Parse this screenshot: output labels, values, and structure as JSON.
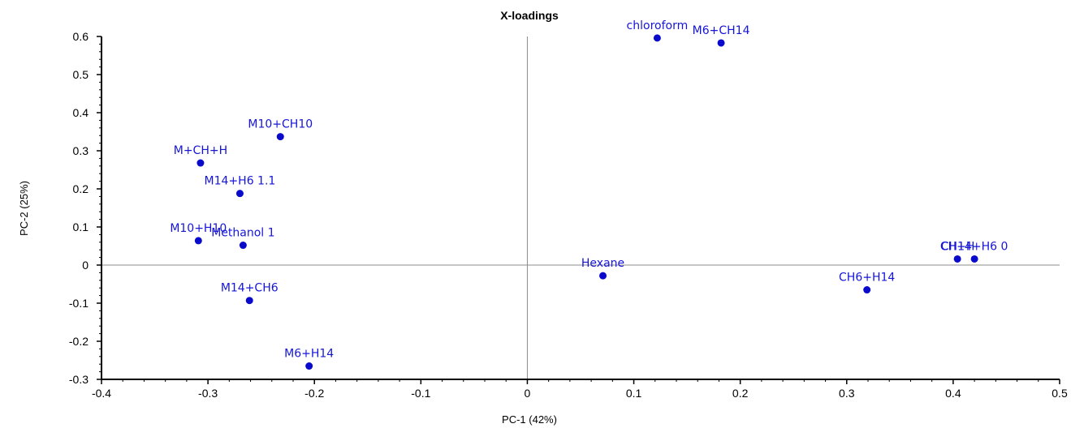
{
  "chart_data": {
    "type": "scatter",
    "title": "X-loadings",
    "xlabel": "PC-1 (42%)",
    "ylabel": "PC-2 (25%)",
    "xlim": [
      -0.4,
      0.5
    ],
    "ylim": [
      -0.3,
      0.6
    ],
    "xticks": [
      "-0.4",
      "-0.3",
      "-0.2",
      "-0.1",
      "0",
      "0.1",
      "0.2",
      "0.3",
      "0.4",
      "0.5"
    ],
    "yticks": [
      "-0.3",
      "-0.2",
      "-0.1",
      "0",
      "0.1",
      "0.2",
      "0.3",
      "0.4",
      "0.5",
      "0.6"
    ],
    "grid": false,
    "zero_lines": true,
    "marker_color": "#0a0acd",
    "label_color": "#1515d8",
    "points": [
      {
        "label": "chloroform",
        "x": 0.122,
        "y": 0.596
      },
      {
        "label": "M6+CH14",
        "x": 0.182,
        "y": 0.583
      },
      {
        "label": "M10+CH10",
        "x": -0.232,
        "y": 0.337
      },
      {
        "label": "M+CH+H",
        "x": -0.307,
        "y": 0.268
      },
      {
        "label": "M14+H6 1.1",
        "x": -0.27,
        "y": 0.188
      },
      {
        "label": "M10+H10",
        "x": -0.309,
        "y": 0.064
      },
      {
        "label": "Methanol 1",
        "x": -0.267,
        "y": 0.052
      },
      {
        "label": "Hexane",
        "x": 0.071,
        "y": -0.028
      },
      {
        "label": "CH+H",
        "x": 0.404,
        "y": 0.016
      },
      {
        "label": "CH14+H6 0",
        "x": 0.42,
        "y": 0.016
      },
      {
        "label": "CH6+H14",
        "x": 0.319,
        "y": -0.065
      },
      {
        "label": "M14+CH6",
        "x": -0.261,
        "y": -0.093
      },
      {
        "label": "M6+H14",
        "x": -0.205,
        "y": -0.265
      }
    ]
  }
}
